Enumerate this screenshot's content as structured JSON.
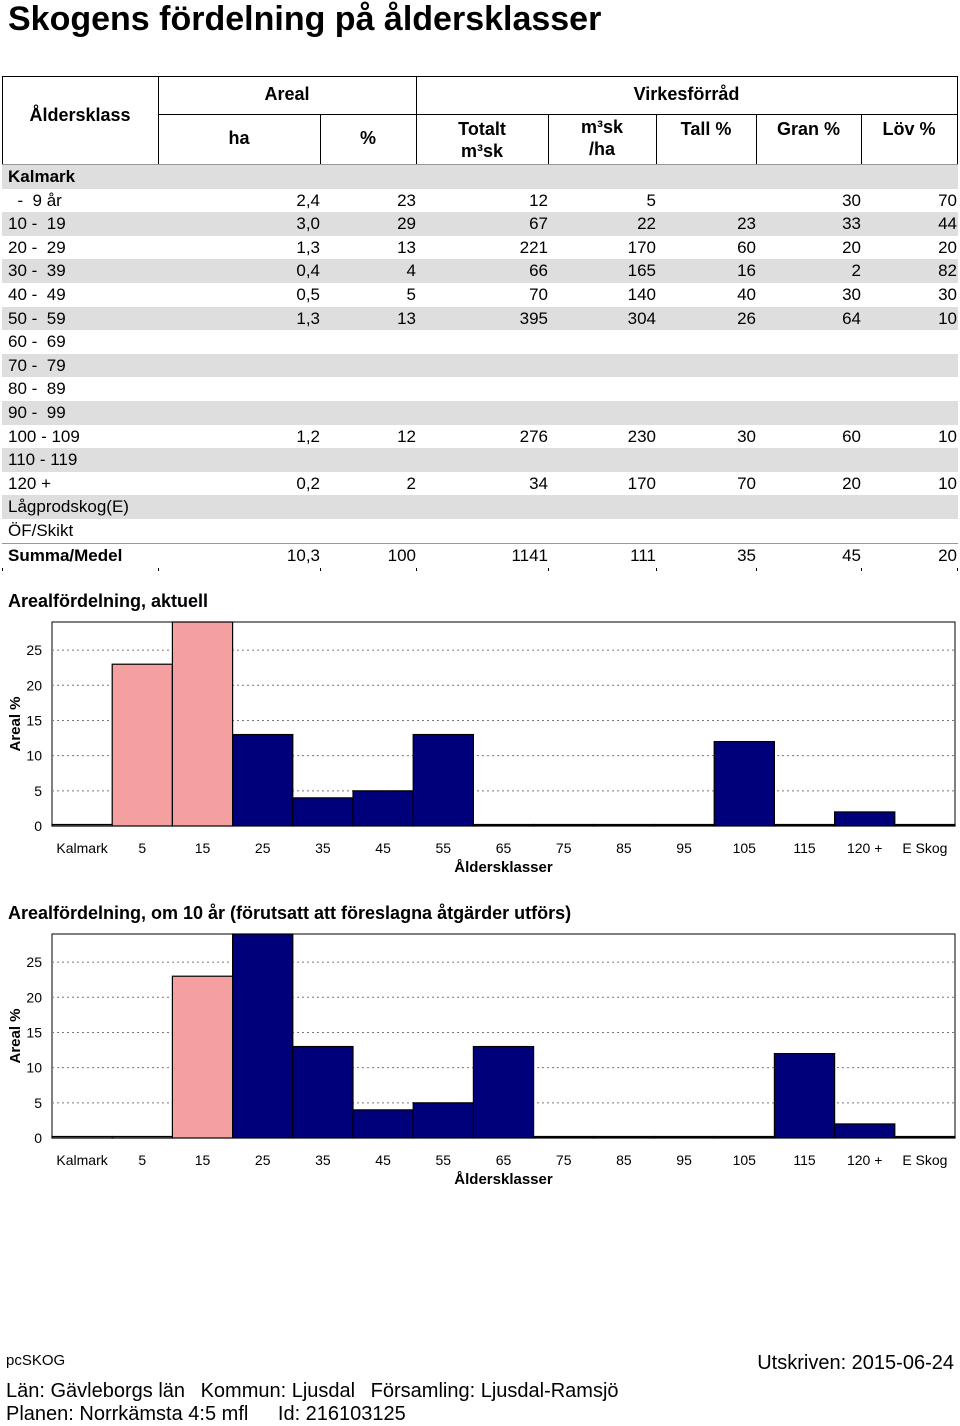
{
  "title": "Skogens fördelning på åldersklasser",
  "table": {
    "headers": {
      "aldersklass": "Åldersklass",
      "areal": "Areal",
      "virkesforrad": "Virkesförråd",
      "ha": "ha",
      "pct": "%",
      "totalt_l1": "Totalt",
      "totalt_l2": "m³sk",
      "m3ha_l1": "m³sk",
      "m3ha_l2": "/ha",
      "tall": "Tall %",
      "gran": "Gran %",
      "lov": "Löv %"
    },
    "group_label": "Kalmark",
    "rows": [
      {
        "label": "  -  9 år",
        "ha": "2,4",
        "pct": "23",
        "tot": "12",
        "m3ha": "5",
        "tall": "",
        "gran": "30",
        "lov": "70"
      },
      {
        "label": "10 -  19",
        "ha": "3,0",
        "pct": "29",
        "tot": "67",
        "m3ha": "22",
        "tall": "23",
        "gran": "33",
        "lov": "44"
      },
      {
        "label": "20 -  29",
        "ha": "1,3",
        "pct": "13",
        "tot": "221",
        "m3ha": "170",
        "tall": "60",
        "gran": "20",
        "lov": "20"
      },
      {
        "label": "30 -  39",
        "ha": "0,4",
        "pct": "4",
        "tot": "66",
        "m3ha": "165",
        "tall": "16",
        "gran": "2",
        "lov": "82"
      },
      {
        "label": "40 -  49",
        "ha": "0,5",
        "pct": "5",
        "tot": "70",
        "m3ha": "140",
        "tall": "40",
        "gran": "30",
        "lov": "30"
      },
      {
        "label": "50 -  59",
        "ha": "1,3",
        "pct": "13",
        "tot": "395",
        "m3ha": "304",
        "tall": "26",
        "gran": "64",
        "lov": "10"
      },
      {
        "label": "60 -  69",
        "ha": "",
        "pct": "",
        "tot": "",
        "m3ha": "",
        "tall": "",
        "gran": "",
        "lov": ""
      },
      {
        "label": "70 -  79",
        "ha": "",
        "pct": "",
        "tot": "",
        "m3ha": "",
        "tall": "",
        "gran": "",
        "lov": ""
      },
      {
        "label": "80 -  89",
        "ha": "",
        "pct": "",
        "tot": "",
        "m3ha": "",
        "tall": "",
        "gran": "",
        "lov": ""
      },
      {
        "label": "90 -  99",
        "ha": "",
        "pct": "",
        "tot": "",
        "m3ha": "",
        "tall": "",
        "gran": "",
        "lov": ""
      },
      {
        "label": "100 - 109",
        "ha": "1,2",
        "pct": "12",
        "tot": "276",
        "m3ha": "230",
        "tall": "30",
        "gran": "60",
        "lov": "10"
      },
      {
        "label": "110 - 119",
        "ha": "",
        "pct": "",
        "tot": "",
        "m3ha": "",
        "tall": "",
        "gran": "",
        "lov": ""
      },
      {
        "label": "120 +",
        "ha": "0,2",
        "pct": "2",
        "tot": "34",
        "m3ha": "170",
        "tall": "70",
        "gran": "20",
        "lov": "10"
      },
      {
        "label": "Lågprodskog(E)",
        "ha": "",
        "pct": "",
        "tot": "",
        "m3ha": "",
        "tall": "",
        "gran": "",
        "lov": ""
      },
      {
        "label": "ÖF/Skikt",
        "ha": "",
        "pct": "",
        "tot": "",
        "m3ha": "",
        "tall": "",
        "gran": "",
        "lov": ""
      }
    ],
    "summary": {
      "label": "Summa/Medel",
      "ha": "10,3",
      "pct": "100",
      "tot": "1141",
      "m3ha": "111",
      "tall": "35",
      "gran": "45",
      "lov": "20"
    }
  },
  "chart_data": [
    {
      "type": "bar",
      "title": "Arealfördelning, aktuell",
      "xlabel": "Åldersklasser",
      "ylabel": "Areal %",
      "categories": [
        "Kalmark",
        "5",
        "15",
        "25",
        "35",
        "45",
        "55",
        "65",
        "75",
        "85",
        "95",
        "105",
        "115",
        "120 +",
        "E Skog"
      ],
      "values": [
        0,
        23,
        29,
        13,
        4,
        5,
        13,
        0,
        0,
        0,
        0,
        12,
        0,
        2,
        0
      ],
      "bar_colors": [
        "#f4a0a0",
        "#f4a0a0",
        "#f4a0a0",
        "#00007a",
        "#00007a",
        "#00007a",
        "#00007a",
        "#00007a",
        "#00007a",
        "#00007a",
        "#00007a",
        "#00007a",
        "#00007a",
        "#00007a",
        "#00007a"
      ],
      "yticks": [
        0,
        5,
        10,
        15,
        20,
        25
      ],
      "ylim": [
        0,
        29
      ],
      "grid": "horizontal dotted"
    },
    {
      "type": "bar",
      "title": "Arealfördelning, om 10 år (förutsatt att föreslagna åtgärder utförs)",
      "xlabel": "Åldersklasser",
      "ylabel": "Areal %",
      "categories": [
        "Kalmark",
        "5",
        "15",
        "25",
        "35",
        "45",
        "55",
        "65",
        "75",
        "85",
        "95",
        "105",
        "115",
        "120 +",
        "E Skog"
      ],
      "values": [
        0,
        0,
        23,
        29,
        13,
        4,
        5,
        13,
        0,
        0,
        0,
        0,
        12,
        2,
        0
      ],
      "bar_colors": [
        "#f4a0a0",
        "#f4a0a0",
        "#f4a0a0",
        "#00007a",
        "#00007a",
        "#00007a",
        "#00007a",
        "#00007a",
        "#00007a",
        "#00007a",
        "#00007a",
        "#00007a",
        "#00007a",
        "#00007a",
        "#00007a"
      ],
      "yticks": [
        0,
        5,
        10,
        15,
        20,
        25
      ],
      "ylim": [
        0,
        29
      ],
      "grid": "horizontal dotted"
    }
  ],
  "footer": {
    "software": "pcSKOG",
    "printed": "Utskriven: 2015-06-24",
    "lan": "Län: Gävleborgs län",
    "kommun": "Kommun: Ljusdal",
    "forsamling": "Församling: Ljusdal-Ramsjö",
    "planen": "Planen: Norrkämsta 4:5 mfl",
    "id": "Id: 216103125"
  }
}
